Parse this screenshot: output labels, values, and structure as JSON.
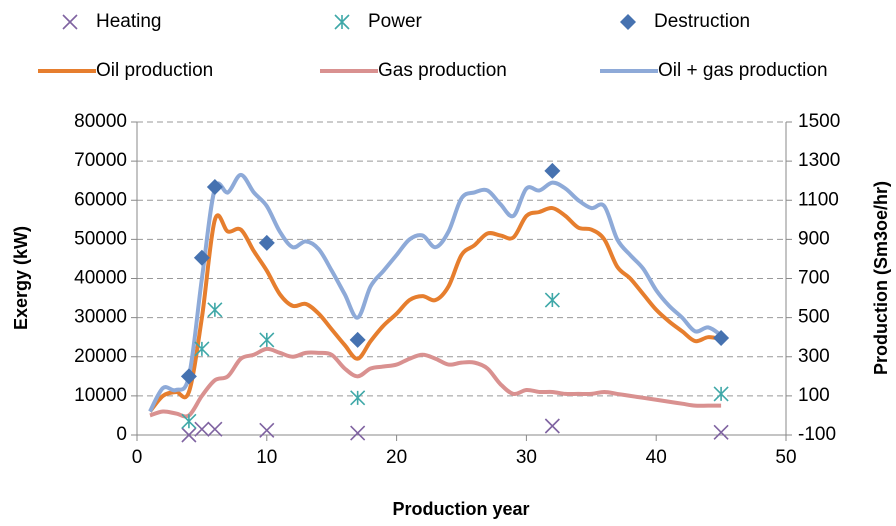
{
  "chart_data": {
    "type": "combo",
    "x_label": "Production year",
    "y_label": "Exergy (kW)",
    "y2_label": "Production (Sm3oe/hr)",
    "xlim": [
      0,
      50
    ],
    "xticks": [
      0,
      10,
      20,
      30,
      40,
      50
    ],
    "ylim": [
      0,
      80000
    ],
    "yticks": [
      0,
      10000,
      20000,
      30000,
      40000,
      50000,
      60000,
      70000,
      80000
    ],
    "y2lim": [
      -100,
      1500
    ],
    "y2ticks": [
      -100,
      100,
      300,
      500,
      700,
      900,
      1100,
      1300,
      1500
    ],
    "grid": true,
    "series": [
      {
        "name": "Heating",
        "type": "scatter",
        "marker": "x",
        "color": "#7f63a1",
        "x": [
          4,
          5,
          6,
          10,
          17,
          32,
          45
        ],
        "values": [
          0,
          1500,
          1500,
          1200,
          500,
          2300,
          700
        ]
      },
      {
        "name": "Power",
        "type": "scatter",
        "marker": "asterisk",
        "color": "#3fa8a8",
        "x": [
          4,
          5,
          6,
          10,
          17,
          32,
          45
        ],
        "values": [
          3500,
          22000,
          32000,
          24300,
          9500,
          34500,
          10500
        ]
      },
      {
        "name": "Destruction",
        "type": "scatter",
        "marker": "diamond",
        "color": "#4672b0",
        "x": [
          4,
          5,
          6,
          10,
          17,
          32,
          45
        ],
        "values": [
          15000,
          45300,
          63400,
          49100,
          24300,
          67500,
          24800
        ]
      },
      {
        "name": "Oil production",
        "type": "line",
        "axis": "y2",
        "color": "#e67e2e",
        "x": [
          1,
          2,
          3,
          4,
          5,
          6,
          7,
          8,
          9,
          10,
          11,
          12,
          13,
          14,
          15,
          16,
          17,
          18,
          19,
          20,
          21,
          22,
          23,
          24,
          25,
          26,
          27,
          28,
          29,
          30,
          31,
          32,
          33,
          34,
          35,
          36,
          37,
          38,
          39,
          40,
          41,
          42,
          43,
          44,
          45
        ],
        "values": [
          20,
          100,
          120,
          120,
          500,
          1000,
          940,
          950,
          840,
          740,
          620,
          560,
          570,
          520,
          440,
          360,
          290,
          380,
          460,
          520,
          590,
          610,
          590,
          660,
          820,
          870,
          930,
          920,
          910,
          1020,
          1040,
          1060,
          1020,
          960,
          950,
          900,
          760,
          700,
          620,
          540,
          480,
          430,
          380,
          400,
          390
        ]
      },
      {
        "name": "Gas production",
        "type": "line",
        "axis": "y2",
        "color": "#d99190",
        "x": [
          1,
          2,
          3,
          4,
          5,
          6,
          7,
          8,
          9,
          10,
          11,
          12,
          13,
          14,
          15,
          16,
          17,
          18,
          19,
          20,
          21,
          22,
          23,
          24,
          25,
          26,
          27,
          28,
          29,
          30,
          31,
          32,
          33,
          34,
          35,
          36,
          37,
          38,
          39,
          40,
          41,
          42,
          43,
          44,
          45
        ],
        "values": [
          0,
          20,
          10,
          0,
          100,
          180,
          200,
          290,
          310,
          340,
          320,
          300,
          320,
          320,
          310,
          240,
          200,
          240,
          250,
          260,
          290,
          310,
          290,
          260,
          270,
          270,
          240,
          160,
          110,
          130,
          120,
          120,
          110,
          110,
          110,
          120,
          110,
          100,
          90,
          80,
          70,
          60,
          50,
          50,
          50
        ]
      },
      {
        "name": "Oil + gas production",
        "type": "line",
        "axis": "y2",
        "color": "#8eaad8",
        "x": [
          1,
          2,
          3,
          4,
          5,
          6,
          7,
          8,
          9,
          10,
          11,
          12,
          13,
          14,
          15,
          16,
          17,
          18,
          19,
          20,
          21,
          22,
          23,
          24,
          25,
          26,
          27,
          28,
          29,
          30,
          31,
          32,
          33,
          34,
          35,
          36,
          37,
          38,
          39,
          40,
          41,
          42,
          43,
          44,
          45
        ],
        "values": [
          20,
          140,
          130,
          200,
          700,
          1160,
          1140,
          1230,
          1140,
          1070,
          940,
          860,
          890,
          850,
          740,
          620,
          500,
          660,
          740,
          820,
          900,
          920,
          860,
          940,
          1110,
          1140,
          1150,
          1080,
          1020,
          1160,
          1150,
          1190,
          1160,
          1100,
          1060,
          1070,
          900,
          820,
          750,
          640,
          560,
          500,
          430,
          450,
          410
        ]
      }
    ]
  }
}
